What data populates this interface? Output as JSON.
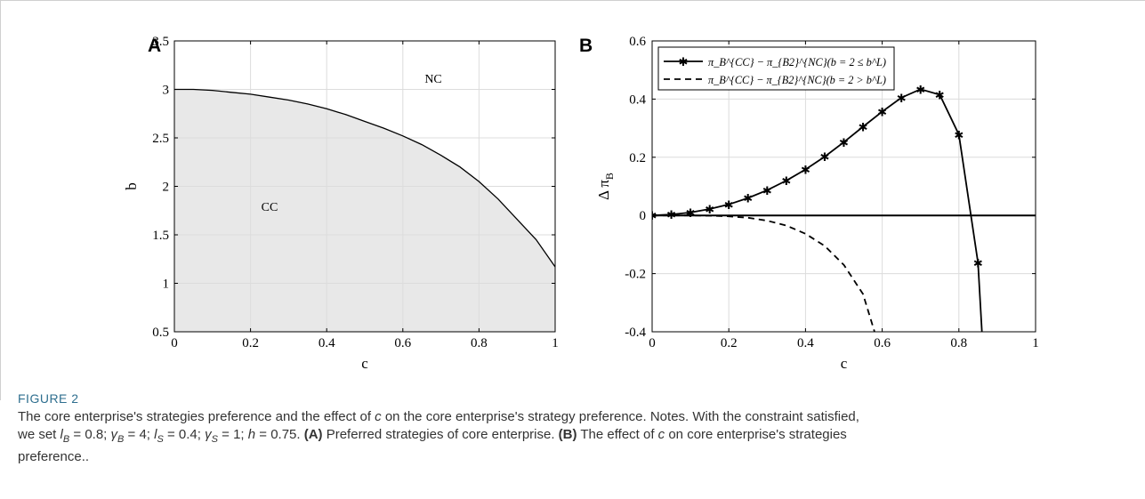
{
  "figure_label": "FIGURE 2",
  "caption": {
    "line1": "The core enterprise's strategies preference and the effect of c on the core enterprise's strategy preference. Notes. With the constraint satisfied,",
    "line2_pre": "we set l",
    "params": [
      {
        "sym": "l",
        "sub": "B",
        "val": "0.8"
      },
      {
        "sym": "γ",
        "sub": "B",
        "val": "4"
      },
      {
        "sym": "l",
        "sub": "S",
        "val": "0.4"
      },
      {
        "sym": "γ",
        "sub": "S",
        "val": "1"
      },
      {
        "sym": "h",
        "sub": "",
        "val": "0.75"
      }
    ],
    "panel_a_tag": "(A)",
    "panel_a_text": "Preferred strategies of core enterprise.",
    "panel_b_tag": "(B)",
    "panel_b_text_pre": "The effect of",
    "panel_b_text_post": "on core enterprise's strategies",
    "line3": "preference.."
  },
  "chart_data": [
    {
      "type": "area",
      "panel": "A",
      "xlabel": "c",
      "ylabel": "b",
      "xlim": [
        0,
        1
      ],
      "ylim": [
        0.5,
        3.5
      ],
      "xticks": [
        "0",
        "0.2",
        "0.4",
        "0.6",
        "0.8",
        "1"
      ],
      "yticks": [
        "0.5",
        "1",
        "1.5",
        "2",
        "2.5",
        "3",
        "3.5"
      ],
      "grid": true,
      "regions": [
        {
          "label": "CC",
          "x": 0.25,
          "y": 1.75
        },
        {
          "label": "NC",
          "x": 0.68,
          "y": 3.07
        }
      ],
      "boundary": {
        "x": [
          0,
          0.05,
          0.1,
          0.15,
          0.2,
          0.25,
          0.3,
          0.35,
          0.4,
          0.45,
          0.5,
          0.55,
          0.6,
          0.65,
          0.7,
          0.75,
          0.8,
          0.85,
          0.9,
          0.95,
          1.0
        ],
        "y": [
          3.0,
          3.0,
          2.99,
          2.97,
          2.95,
          2.92,
          2.89,
          2.85,
          2.8,
          2.74,
          2.67,
          2.6,
          2.52,
          2.43,
          2.32,
          2.2,
          2.05,
          1.87,
          1.66,
          1.45,
          1.17
        ]
      },
      "fill_color": "#e8e8e8"
    },
    {
      "type": "line",
      "panel": "B",
      "xlabel": "c",
      "ylabel": "Δ π",
      "ylabel_sub": "B",
      "xlim": [
        0,
        1
      ],
      "ylim": [
        -0.4,
        0.6
      ],
      "xticks": [
        "0",
        "0.2",
        "0.4",
        "0.6",
        "0.8",
        "1"
      ],
      "yticks": [
        "-0.4",
        "-0.2",
        "0",
        "0.2",
        "0.4",
        "0.6"
      ],
      "grid": true,
      "legend_position": "top-left",
      "zero_line": true,
      "series": [
        {
          "name": "π_B^{CC} − π_{B2}^{NC}(b = 2 ≤ b^L)",
          "style": "solid-star",
          "x": [
            0,
            0.05,
            0.1,
            0.15,
            0.2,
            0.25,
            0.3,
            0.35,
            0.4,
            0.45,
            0.5,
            0.55,
            0.6,
            0.65,
            0.7,
            0.75,
            0.8,
            0.85,
            0.86
          ],
          "y": [
            0,
            0.003,
            0.01,
            0.022,
            0.038,
            0.06,
            0.087,
            0.12,
            0.158,
            0.202,
            0.252,
            0.305,
            0.357,
            0.405,
            0.434,
            0.415,
            0.278,
            -0.163,
            -0.4
          ],
          "markers": [
            0,
            0.05,
            0.1,
            0.15,
            0.2,
            0.25,
            0.3,
            0.35,
            0.4,
            0.45,
            0.5,
            0.55,
            0.6,
            0.65,
            0.7,
            0.75,
            0.8,
            0.85
          ]
        },
        {
          "name": "π_B^{CC} − π_{B2}^{NC}(b = 2 > b^L)",
          "style": "dashed",
          "x": [
            0,
            0.05,
            0.1,
            0.15,
            0.2,
            0.25,
            0.3,
            0.35,
            0.4,
            0.45,
            0.5,
            0.55,
            0.58
          ],
          "y": [
            0,
            0,
            0,
            -0.001,
            -0.003,
            -0.008,
            -0.018,
            -0.035,
            -0.063,
            -0.105,
            -0.17,
            -0.27,
            -0.4
          ]
        }
      ]
    }
  ]
}
